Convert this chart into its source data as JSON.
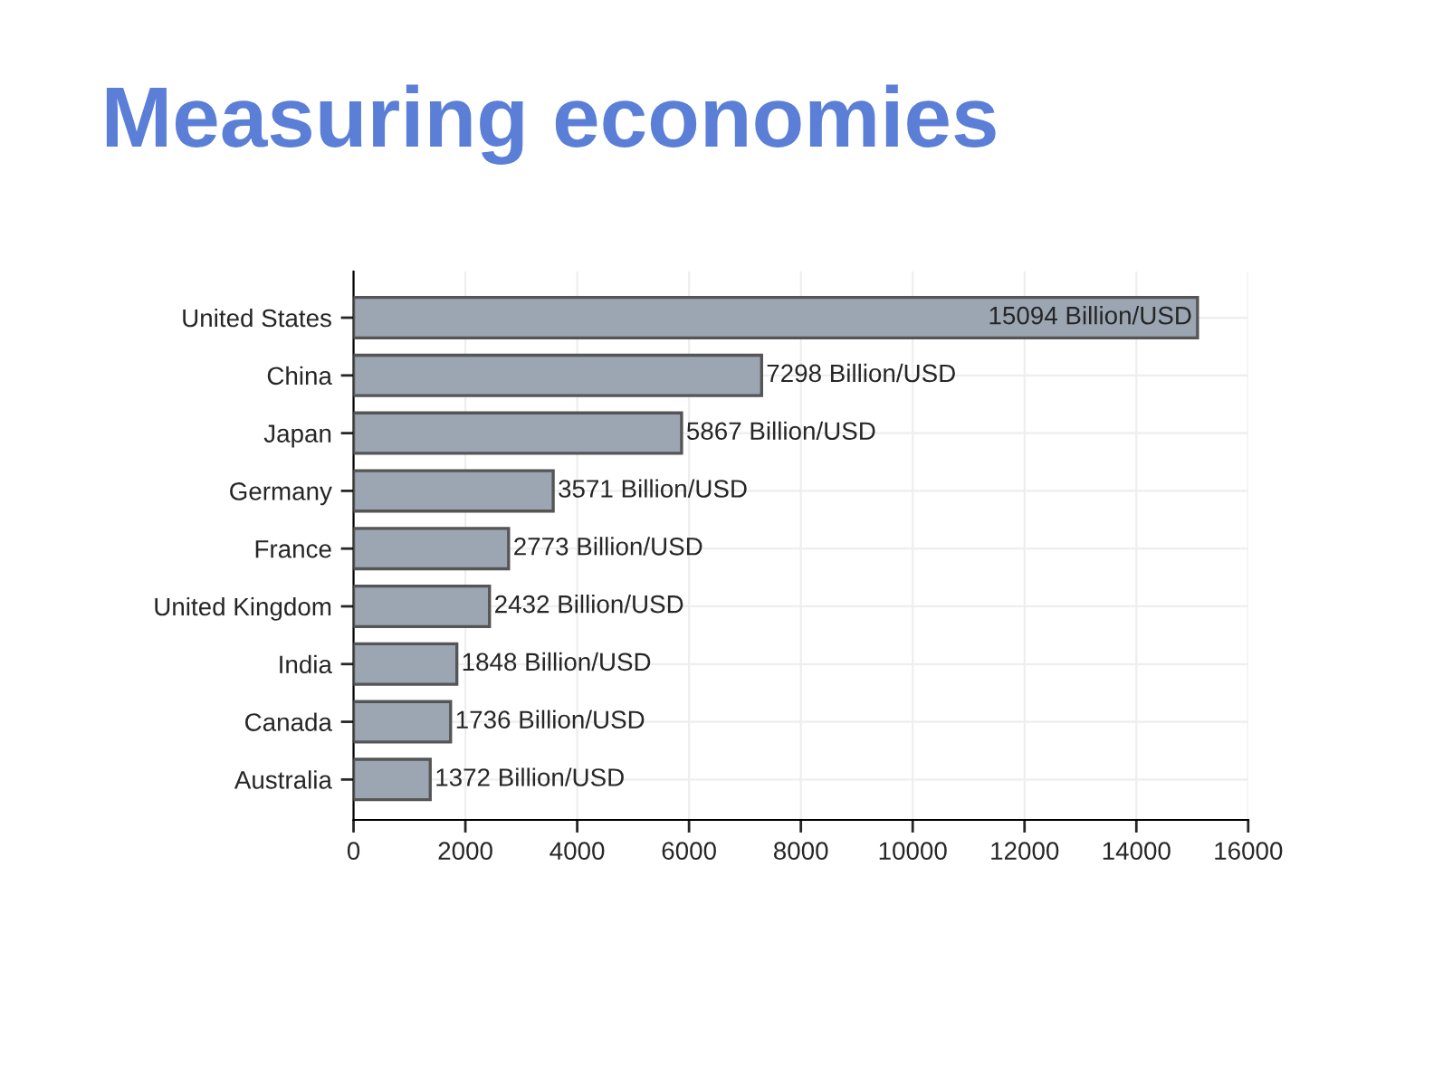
{
  "chart_data": {
    "type": "bar",
    "orientation": "horizontal",
    "title": "Measuring economies",
    "categories": [
      "United States",
      "China",
      "Japan",
      "Germany",
      "France",
      "United Kingdom",
      "India",
      "Canada",
      "Australia"
    ],
    "values": [
      15094,
      7298,
      5867,
      3571,
      2773,
      2432,
      1848,
      1736,
      1372
    ],
    "value_labels": [
      "15094 Billion/USD",
      "7298 Billion/USD",
      "5867 Billion/USD",
      "3571 Billion/USD",
      "2773 Billion/USD",
      "2432 Billion/USD",
      "1848 Billion/USD",
      "1736 Billion/USD",
      "1372 Billion/USD"
    ],
    "color": "#9ba6b2",
    "xlim": [
      0,
      16000
    ],
    "xticks": [
      0,
      2000,
      4000,
      6000,
      8000,
      10000,
      12000,
      14000,
      16000
    ],
    "grid": true
  }
}
